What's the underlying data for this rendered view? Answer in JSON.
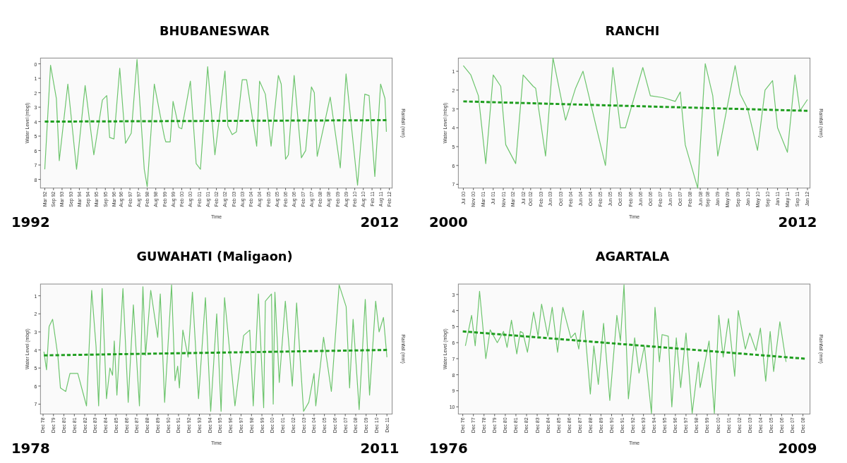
{
  "chart_data": [
    {
      "type": "line",
      "title": "BHUBANESWAR",
      "xlabel": "Time",
      "ylabel": "Water Level (mbgl)",
      "y2label": "Rainfall (mm)",
      "annotations": [
        "1992",
        "2012"
      ],
      "xlim": [
        "1991-12",
        "2012-04"
      ],
      "ylim": [
        8.6,
        -0.4
      ],
      "yticks": [
        0,
        1,
        2,
        3,
        4,
        5,
        6,
        7,
        8
      ],
      "xticks": [
        {
          "value": "1992-03",
          "label": "Mar 92"
        },
        {
          "value": "1992-09",
          "label": "Sep 92"
        },
        {
          "value": "1993-03",
          "label": "Mar 93"
        },
        {
          "value": "1993-09",
          "label": "Sep 93"
        },
        {
          "value": "1994-03",
          "label": "Mar 94"
        },
        {
          "value": "1994-09",
          "label": "Sep 94"
        },
        {
          "value": "1995-03",
          "label": "Mar 95"
        },
        {
          "value": "1995-09",
          "label": "Sep 95"
        },
        {
          "value": "1996-03",
          "label": "Mar 96"
        },
        {
          "value": "1996-08",
          "label": "Aug 96"
        },
        {
          "value": "1997-02",
          "label": "Feb 97"
        },
        {
          "value": "1997-08",
          "label": "Aug 97"
        },
        {
          "value": "1998-02",
          "label": "Feb 98"
        },
        {
          "value": "1998-08",
          "label": "Aug 98"
        },
        {
          "value": "1999-02",
          "label": "Feb 99"
        },
        {
          "value": "1999-08",
          "label": "Aug 99"
        },
        {
          "value": "2000-02",
          "label": "Feb 00"
        },
        {
          "value": "2000-08",
          "label": "Aug 00"
        },
        {
          "value": "2001-02",
          "label": "Feb 01"
        },
        {
          "value": "2001-08",
          "label": "Aug 01"
        },
        {
          "value": "2002-02",
          "label": "Feb 02"
        },
        {
          "value": "2002-08",
          "label": "Aug 02"
        },
        {
          "value": "2003-02",
          "label": "Feb 03"
        },
        {
          "value": "2003-08",
          "label": "Aug 03"
        },
        {
          "value": "2004-02",
          "label": "Feb 04"
        },
        {
          "value": "2004-08",
          "label": "Aug 04"
        },
        {
          "value": "2005-02",
          "label": "Feb 05"
        },
        {
          "value": "2005-08",
          "label": "Aug 05"
        },
        {
          "value": "2006-02",
          "label": "Feb 06"
        },
        {
          "value": "2006-08",
          "label": "Aug 06"
        },
        {
          "value": "2007-02",
          "label": "Feb 07"
        },
        {
          "value": "2007-08",
          "label": "Aug 07"
        },
        {
          "value": "2008-02",
          "label": "Feb 08"
        },
        {
          "value": "2008-08",
          "label": "Aug 08"
        },
        {
          "value": "2009-02",
          "label": "Feb 09"
        },
        {
          "value": "2009-08",
          "label": "Aug 09"
        },
        {
          "value": "2010-02",
          "label": "Feb 10"
        },
        {
          "value": "2010-08",
          "label": "Aug 10"
        },
        {
          "value": "2011-02",
          "label": "Feb 11"
        },
        {
          "value": "2011-08",
          "label": "Aug 11"
        },
        {
          "value": "2012-02",
          "label": "Feb 12"
        }
      ],
      "x": [
        "1992-03",
        "1992-07",
        "1992-11",
        "1993-01",
        "1993-07",
        "1994-01",
        "1994-07",
        "1995-01",
        "1995-07",
        "1995-10",
        "1995-12",
        "1996-03",
        "1996-07",
        "1996-11",
        "1997-03",
        "1997-07",
        "1997-12",
        "1998-02",
        "1998-07",
        "1998-10",
        "1999-02",
        "1999-03",
        "1999-06",
        "1999-08",
        "1999-12",
        "2000-02",
        "2000-08",
        "2000-12",
        "2001-03",
        "2001-08",
        "2002-01",
        "2002-08",
        "2002-10",
        "2003-01",
        "2003-04",
        "2003-08",
        "2003-11",
        "2004-06",
        "2004-08",
        "2004-12",
        "2005-04",
        "2005-09",
        "2005-11",
        "2006-02",
        "2006-04",
        "2006-08",
        "2007-01",
        "2007-04",
        "2007-08",
        "2007-10",
        "2007-12",
        "2008-09",
        "2009-04",
        "2009-08",
        "2010-04",
        "2010-09",
        "2010-12",
        "2011-04",
        "2011-08",
        "2011-11",
        "2011-12"
      ],
      "series": [
        {
          "type": "line",
          "color": "#6cc46c",
          "line_style": "solid",
          "values": [
            7.3,
            0.1,
            2.4,
            6.7,
            1.4,
            7.3,
            1.5,
            6.3,
            2.5,
            2.2,
            5.1,
            5.2,
            0.3,
            5.5,
            4.8,
            -0.3,
            7.3,
            8.5,
            1.4,
            3.0,
            5.1,
            5.4,
            5.4,
            2.6,
            4.4,
            4.5,
            1.2,
            6.9,
            7.3,
            0.2,
            6.3,
            0.5,
            4.3,
            4.9,
            4.7,
            1.1,
            1.1,
            5.7,
            1.2,
            2.1,
            5.7,
            0.8,
            1.4,
            6.6,
            6.3,
            0.8,
            6.5,
            6.0,
            1.6,
            2.0,
            6.4,
            2.3,
            7.2,
            0.7,
            8.4,
            2.1,
            2.2,
            7.8,
            1.4,
            2.4,
            4.7
          ]
        },
        {
          "type": "line",
          "color": "#1f9e1f",
          "line_style": "dashed",
          "x": [
            "1992-03",
            "2011-12"
          ],
          "values": [
            4.0,
            3.9
          ]
        }
      ]
    },
    {
      "type": "line",
      "title": "RANCHI",
      "xlabel": "Time",
      "ylabel": "Water Level (mbgl)",
      "y2label": "Rainfall (mm)",
      "annotations": [
        "2000",
        "2012"
      ],
      "xlim": [
        "2000-05",
        "2012-02"
      ],
      "ylim": [
        7.2,
        0.3
      ],
      "yticks": [
        1,
        2,
        3,
        4,
        5,
        6,
        7
      ],
      "xticks": [
        {
          "value": "2000-07",
          "label": "Jul 00"
        },
        {
          "value": "2000-11",
          "label": "Nov 00"
        },
        {
          "value": "2001-03",
          "label": "Mar 01"
        },
        {
          "value": "2001-07",
          "label": "Jul 01"
        },
        {
          "value": "2001-11",
          "label": "Nov 01"
        },
        {
          "value": "2002-03",
          "label": "Mar 02"
        },
        {
          "value": "2002-07",
          "label": "Jul 02"
        },
        {
          "value": "2002-10",
          "label": "Oct 02"
        },
        {
          "value": "2003-02",
          "label": "Feb 03"
        },
        {
          "value": "2003-06",
          "label": "Jun 03"
        },
        {
          "value": "2003-10",
          "label": "Oct 03"
        },
        {
          "value": "2004-02",
          "label": "Feb 04"
        },
        {
          "value": "2004-06",
          "label": "Jun 04"
        },
        {
          "value": "2004-10",
          "label": "Oct 04"
        },
        {
          "value": "2005-02",
          "label": "Feb 05"
        },
        {
          "value": "2005-06",
          "label": "Jun 05"
        },
        {
          "value": "2005-10",
          "label": "Oct 05"
        },
        {
          "value": "2006-02",
          "label": "Feb 06"
        },
        {
          "value": "2006-06",
          "label": "Jun 06"
        },
        {
          "value": "2006-10",
          "label": "Oct 06"
        },
        {
          "value": "2007-02",
          "label": "Feb 07"
        },
        {
          "value": "2007-06",
          "label": "Jun 07"
        },
        {
          "value": "2007-10",
          "label": "Oct 07"
        },
        {
          "value": "2008-02",
          "label": "Feb 08"
        },
        {
          "value": "2008-06",
          "label": "Jun 08"
        },
        {
          "value": "2008-09",
          "label": "Sep 08"
        },
        {
          "value": "2009-01",
          "label": "Jan 09"
        },
        {
          "value": "2009-05",
          "label": "May 09"
        },
        {
          "value": "2009-09",
          "label": "Sep 09"
        },
        {
          "value": "2010-01",
          "label": "Jan 10"
        },
        {
          "value": "2010-05",
          "label": "May 10"
        },
        {
          "value": "2010-09",
          "label": "Sep 10"
        },
        {
          "value": "2011-01",
          "label": "Jan 11"
        },
        {
          "value": "2011-05",
          "label": "May 11"
        },
        {
          "value": "2011-09",
          "label": "Sep 11"
        },
        {
          "value": "2012-01",
          "label": "Jan 12"
        }
      ],
      "x": [
        "2000-07",
        "2000-10",
        "2001-01",
        "2001-04",
        "2001-07",
        "2001-10",
        "2001-12",
        "2002-04",
        "2002-07",
        "2002-11",
        "2002-12",
        "2003-04",
        "2003-07",
        "2003-12",
        "2004-04",
        "2004-07",
        "2005-04",
        "2005-07",
        "2005-10",
        "2005-12",
        "2006-07",
        "2006-10",
        "2007-03",
        "2007-08",
        "2007-10",
        "2007-12",
        "2008-05",
        "2008-08",
        "2008-11",
        "2009-01",
        "2009-08",
        "2009-10",
        "2010-01",
        "2010-05",
        "2010-08",
        "2010-11",
        "2011-01",
        "2011-05",
        "2011-08",
        "2011-10",
        "2012-01"
      ],
      "series": [
        {
          "type": "line",
          "color": "#6cc46c",
          "line_style": "solid",
          "values": [
            0.7,
            1.2,
            2.3,
            5.9,
            1.2,
            1.8,
            4.9,
            5.9,
            1.2,
            1.8,
            1.9,
            5.5,
            0.3,
            3.6,
            1.9,
            1.0,
            6.0,
            0.8,
            4.0,
            4.0,
            0.8,
            2.3,
            2.4,
            2.6,
            2.1,
            4.9,
            7.2,
            0.6,
            2.3,
            5.5,
            0.7,
            2.2,
            3.0,
            5.2,
            2.0,
            1.5,
            4.0,
            5.3,
            1.2,
            3.1,
            2.5
          ]
        },
        {
          "type": "line",
          "color": "#1f9e1f",
          "line_style": "dashed",
          "x": [
            "2000-07",
            "2012-01"
          ],
          "values": [
            2.6,
            3.1
          ]
        }
      ]
    },
    {
      "type": "line",
      "title": "GUWAHATI (Maligaon)",
      "xlabel": "Time",
      "ylabel": "Water Level (mbgl)",
      "y2label": "Rainfall (mm)",
      "annotations": [
        "1978",
        "2011"
      ],
      "xlim": [
        "1978-09",
        "2012-06"
      ],
      "ylim": [
        7.55,
        0.35
      ],
      "yticks": [
        1,
        2,
        3,
        4,
        5,
        6,
        7
      ],
      "xticks": [
        {
          "value": "1978-12",
          "label": "Dec 78"
        },
        {
          "value": "1979-12",
          "label": "Dec 79"
        },
        {
          "value": "1980-12",
          "label": "Dec 80"
        },
        {
          "value": "1981-12",
          "label": "Dec 81"
        },
        {
          "value": "1982-12",
          "label": "Dec 82"
        },
        {
          "value": "1983-12",
          "label": "Dec 83"
        },
        {
          "value": "1984-12",
          "label": "Dec 84"
        },
        {
          "value": "1985-12",
          "label": "Dec 85"
        },
        {
          "value": "1986-12",
          "label": "Dec 86"
        },
        {
          "value": "1987-12",
          "label": "Dec 87"
        },
        {
          "value": "1988-12",
          "label": "Dec 88"
        },
        {
          "value": "1989-12",
          "label": "Dec 89"
        },
        {
          "value": "1990-12",
          "label": "Dec 90"
        },
        {
          "value": "1991-12",
          "label": "Dec 91"
        },
        {
          "value": "1992-12",
          "label": "Dec 92"
        },
        {
          "value": "1993-12",
          "label": "Dec 93"
        },
        {
          "value": "1994-12",
          "label": "Dec 94"
        },
        {
          "value": "1995-12",
          "label": "Dec 95"
        },
        {
          "value": "1996-12",
          "label": "Dec 96"
        },
        {
          "value": "1997-12",
          "label": "Dec 97"
        },
        {
          "value": "1998-12",
          "label": "Dec 98"
        },
        {
          "value": "1999-12",
          "label": "Dec 99"
        },
        {
          "value": "2000-12",
          "label": "Dec 00"
        },
        {
          "value": "2001-12",
          "label": "Dec 01"
        },
        {
          "value": "2002-12",
          "label": "Dec 02"
        },
        {
          "value": "2003-12",
          "label": "Dec 03"
        },
        {
          "value": "2004-12",
          "label": "Dec 04"
        },
        {
          "value": "2005-12",
          "label": "Dec 05"
        },
        {
          "value": "2006-12",
          "label": "Dec 06"
        },
        {
          "value": "2007-12",
          "label": "Dec 07"
        },
        {
          "value": "2008-12",
          "label": "Dec 08"
        },
        {
          "value": "2009-12",
          "label": "Dec 09"
        },
        {
          "value": "2010-12",
          "label": "Dec 10"
        },
        {
          "value": "2011-12",
          "label": "Dec 11"
        }
      ],
      "x": [
        "1979-01",
        "1979-04",
        "1979-07",
        "1979-11",
        "1980-05",
        "1980-08",
        "1981-02",
        "1981-07",
        "1982-04",
        "1983-02",
        "1983-08",
        "1984-01",
        "1984-04",
        "1984-08",
        "1985-01",
        "1985-05",
        "1985-08",
        "1985-10",
        "1986-01",
        "1986-08",
        "1987-02",
        "1987-08",
        "1988-03",
        "1988-07",
        "1988-10",
        "1989-04",
        "1989-12",
        "1990-03",
        "1990-08",
        "1991-04",
        "1991-08",
        "1991-11",
        "1992-01",
        "1992-05",
        "1992-11",
        "1993-04",
        "1993-11",
        "1994-07",
        "1995-01",
        "1995-08",
        "1996-01",
        "1996-05",
        "1997-05",
        "1998-03",
        "1998-10",
        "1999-02",
        "1999-08",
        "2000-02",
        "2000-04",
        "2000-11",
        "2001-01",
        "2001-03",
        "2001-08",
        "2002-03",
        "2002-11",
        "2003-04",
        "2003-12",
        "2004-06",
        "2004-12",
        "2005-02",
        "2005-11",
        "2006-08",
        "2007-05",
        "2008-01",
        "2008-05",
        "2008-09",
        "2009-04",
        "2009-11",
        "2010-04",
        "2010-11",
        "2011-03",
        "2011-08",
        "2011-12"
      ],
      "series": [
        {
          "type": "line",
          "color": "#6cc46c",
          "line_style": "solid",
          "values": [
            4.1,
            5.1,
            2.7,
            2.3,
            4.3,
            6.1,
            6.3,
            5.3,
            5.3,
            7.1,
            0.7,
            3.8,
            7.1,
            0.6,
            6.7,
            5.0,
            5.4,
            3.5,
            6.5,
            0.6,
            6.9,
            1.5,
            7.1,
            0.5,
            4.3,
            0.7,
            3.3,
            0.9,
            6.9,
            0.4,
            5.7,
            4.9,
            6.1,
            2.9,
            4.4,
            0.8,
            6.7,
            1.1,
            7.4,
            2.0,
            7.4,
            1.1,
            7.1,
            3.2,
            2.9,
            7.1,
            0.9,
            7.2,
            1.3,
            0.9,
            7.0,
            0.8,
            5.8,
            1.3,
            6.0,
            1.4,
            7.4,
            6.9,
            5.3,
            7.1,
            3.3,
            6.3,
            0.4,
            1.6,
            6.1,
            2.3,
            7.3,
            1.2,
            6.5,
            1.3,
            3.0,
            2.2,
            4.4
          ]
        },
        {
          "type": "line",
          "color": "#1f9e1f",
          "line_style": "dashed",
          "x": [
            "1979-01",
            "2011-12"
          ],
          "values": [
            4.3,
            4.0
          ]
        }
      ]
    },
    {
      "type": "line",
      "title": "AGARTALA",
      "xlabel": "Time",
      "ylabel": "Water Level (mbgl)",
      "y2label": "Rainfall (mm)",
      "annotations": [
        "1976",
        "2009"
      ],
      "xlim": [
        "1976-07",
        "2009-08"
      ],
      "ylim": [
        10.45,
        2.35
      ],
      "yticks": [
        3,
        4,
        5,
        6,
        7,
        8,
        9,
        10
      ],
      "xticks": [
        {
          "value": "1976-12",
          "label": "Dec 76"
        },
        {
          "value": "1977-12",
          "label": "Dec 77"
        },
        {
          "value": "1978-12",
          "label": "Dec 78"
        },
        {
          "value": "1979-12",
          "label": "Dec 79"
        },
        {
          "value": "1980-12",
          "label": "Dec 80"
        },
        {
          "value": "1981-12",
          "label": "Dec 81"
        },
        {
          "value": "1982-12",
          "label": "Dec 82"
        },
        {
          "value": "1983-12",
          "label": "Dec 83"
        },
        {
          "value": "1984-12",
          "label": "Dec 84"
        },
        {
          "value": "1985-12",
          "label": "Dec 85"
        },
        {
          "value": "1986-12",
          "label": "Dec 86"
        },
        {
          "value": "1987-12",
          "label": "Dec 87"
        },
        {
          "value": "1988-12",
          "label": "Dec 88"
        },
        {
          "value": "1989-12",
          "label": "Dec 89"
        },
        {
          "value": "1990-12",
          "label": "Dec 90"
        },
        {
          "value": "1991-12",
          "label": "Dec 91"
        },
        {
          "value": "1992-12",
          "label": "Dec 92"
        },
        {
          "value": "1993-12",
          "label": "Dec 93"
        },
        {
          "value": "1994-12",
          "label": "Dec 94"
        },
        {
          "value": "1995-12",
          "label": "Dec 95"
        },
        {
          "value": "1996-12",
          "label": "Dec 96"
        },
        {
          "value": "1997-12",
          "label": "Dec 97"
        },
        {
          "value": "1998-12",
          "label": "Dec 98"
        },
        {
          "value": "1999-12",
          "label": "Dec 99"
        },
        {
          "value": "2000-12",
          "label": "Dec 00"
        },
        {
          "value": "2001-12",
          "label": "Dec 01"
        },
        {
          "value": "2002-12",
          "label": "Dec 02"
        },
        {
          "value": "2003-12",
          "label": "Dec 03"
        },
        {
          "value": "2004-12",
          "label": "Dec 04"
        },
        {
          "value": "2005-12",
          "label": "Dec 05"
        },
        {
          "value": "2006-12",
          "label": "Dec 06"
        },
        {
          "value": "2007-12",
          "label": "Dec 07"
        },
        {
          "value": "2008-12",
          "label": "Dec 08"
        }
      ],
      "x": [
        "1977-03",
        "1977-10",
        "1978-02",
        "1978-07",
        "1979-02",
        "1979-07",
        "1980-03",
        "1980-10",
        "1981-02",
        "1981-07",
        "1982-01",
        "1982-05",
        "1982-08",
        "1983-01",
        "1983-08",
        "1984-01",
        "1984-05",
        "1984-12",
        "1985-05",
        "1985-11",
        "1986-05",
        "1987-02",
        "1987-07",
        "1987-11",
        "1988-04",
        "1988-12",
        "1989-04",
        "1989-09",
        "1990-03",
        "1990-10",
        "1991-06",
        "1991-10",
        "1992-02",
        "1992-07",
        "1993-02",
        "1993-07",
        "1994-01",
        "1994-09",
        "1995-01",
        "1995-06",
        "1995-09",
        "1996-04",
        "1996-08",
        "1997-01",
        "1997-06",
        "1997-12",
        "1998-07",
        "1999-02",
        "1999-04",
        "2000-02",
        "2000-08",
        "2001-01",
        "2001-06",
        "2001-12",
        "2002-07",
        "2002-11",
        "2003-07",
        "2003-12",
        "2004-07",
        "2004-12",
        "2005-06",
        "2005-11",
        "2006-03",
        "2006-10",
        "2007-05"
      ],
      "series": [
        {
          "type": "line",
          "color": "#6cc46c",
          "line_style": "solid",
          "values": [
            6.2,
            4.3,
            6.2,
            2.8,
            7.0,
            5.2,
            6.0,
            5.3,
            6.3,
            4.6,
            6.7,
            5.3,
            5.4,
            6.6,
            4.1,
            5.6,
            3.6,
            5.6,
            3.8,
            6.6,
            3.8,
            5.7,
            5.4,
            6.4,
            4.0,
            9.2,
            6.2,
            8.6,
            4.8,
            9.6,
            4.3,
            5.9,
            2.4,
            9.5,
            5.7,
            7.9,
            6.2,
            10.4,
            3.8,
            7.2,
            5.5,
            5.6,
            10.0,
            5.7,
            8.8,
            5.4,
            10.4,
            7.2,
            8.8,
            5.9,
            10.4,
            4.3,
            6.9,
            4.5,
            8.1,
            4.0,
            6.4,
            5.4,
            6.5,
            5.1,
            8.4,
            5.3,
            7.8,
            4.7,
            7.2
          ]
        },
        {
          "type": "line",
          "color": "#1f9e1f",
          "line_style": "dashed",
          "x": [
            "1976-12",
            "2009-02"
          ],
          "values": [
            5.3,
            7.0
          ]
        }
      ]
    }
  ]
}
